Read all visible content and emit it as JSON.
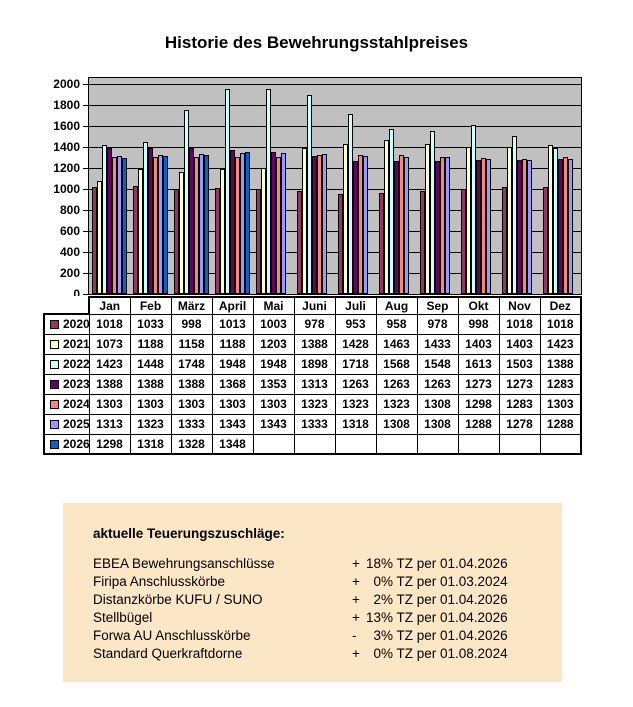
{
  "title": "Historie des Bewehrungsstahlpreises",
  "chart_data": {
    "type": "bar",
    "title": "Historie des Bewehrungsstahlpreises",
    "categories": [
      "Jan",
      "Feb",
      "März",
      "April",
      "Mai",
      "Juni",
      "Juli",
      "Aug",
      "Sep",
      "Okt",
      "Nov",
      "Dez"
    ],
    "series": [
      {
        "name": "2020",
        "color": "#993366",
        "values": [
          1018,
          1033,
          998,
          1013,
          1003,
          978,
          953,
          958,
          978,
          998,
          1018,
          1018
        ]
      },
      {
        "name": "2021",
        "color": "#FFFFCC",
        "values": [
          1073,
          1188,
          1158,
          1188,
          1203,
          1388,
          1428,
          1463,
          1433,
          1403,
          1403,
          1423
        ]
      },
      {
        "name": "2022",
        "color": "#CCFFFF",
        "values": [
          1423,
          1448,
          1748,
          1948,
          1948,
          1898,
          1718,
          1568,
          1548,
          1613,
          1503,
          1388
        ]
      },
      {
        "name": "2023",
        "color": "#660066",
        "values": [
          1388,
          1388,
          1388,
          1368,
          1353,
          1313,
          1263,
          1263,
          1263,
          1273,
          1273,
          1283
        ]
      },
      {
        "name": "2024",
        "color": "#FF8080",
        "values": [
          1303,
          1303,
          1303,
          1303,
          1303,
          1323,
          1323,
          1323,
          1308,
          1298,
          1283,
          1303
        ]
      },
      {
        "name": "2025",
        "color": "#9999FF",
        "values": [
          1313,
          1323,
          1333,
          1343,
          1343,
          1333,
          1318,
          1308,
          1308,
          1288,
          1278,
          1288
        ]
      },
      {
        "name": "2026",
        "color": "#0066CC",
        "values": [
          1298,
          1318,
          1328,
          1348,
          null,
          null,
          null,
          null,
          null,
          null,
          null,
          null
        ]
      }
    ],
    "xlabel": "",
    "ylabel": "",
    "ylim": [
      0,
      2000
    ],
    "ytick_step": 200,
    "grid": true,
    "plot_bg": "#C0C0C0",
    "legend_position": "table-left"
  },
  "surcharges": {
    "heading": "aktuelle Teuerungszuschläge:",
    "bg": "#FBE6C5",
    "items": [
      {
        "label": "EBEA Bewehrungsanschlüsse",
        "sign": "+",
        "percent": "18",
        "suffix": "% TZ per 01.04.2026"
      },
      {
        "label": "Firipa Anschlusskörbe",
        "sign": "+",
        "percent": "0",
        "suffix": "% TZ per 01.03.2024"
      },
      {
        "label": "Distanzkörbe KUFU / SUNO",
        "sign": "+",
        "percent": "2",
        "suffix": "% TZ per 01.04.2026"
      },
      {
        "label": "Stellbügel",
        "sign": "+",
        "percent": "13",
        "suffix": "% TZ per 01.04.2026"
      },
      {
        "label": "Forwa AU Anschlusskörbe",
        "sign": "-",
        "percent": "3",
        "suffix": "% TZ per 01.04.2026"
      },
      {
        "label": "Standard Querkraftdorne",
        "sign": "+",
        "percent": "0",
        "suffix": "% TZ per 01.08.2024"
      }
    ]
  }
}
